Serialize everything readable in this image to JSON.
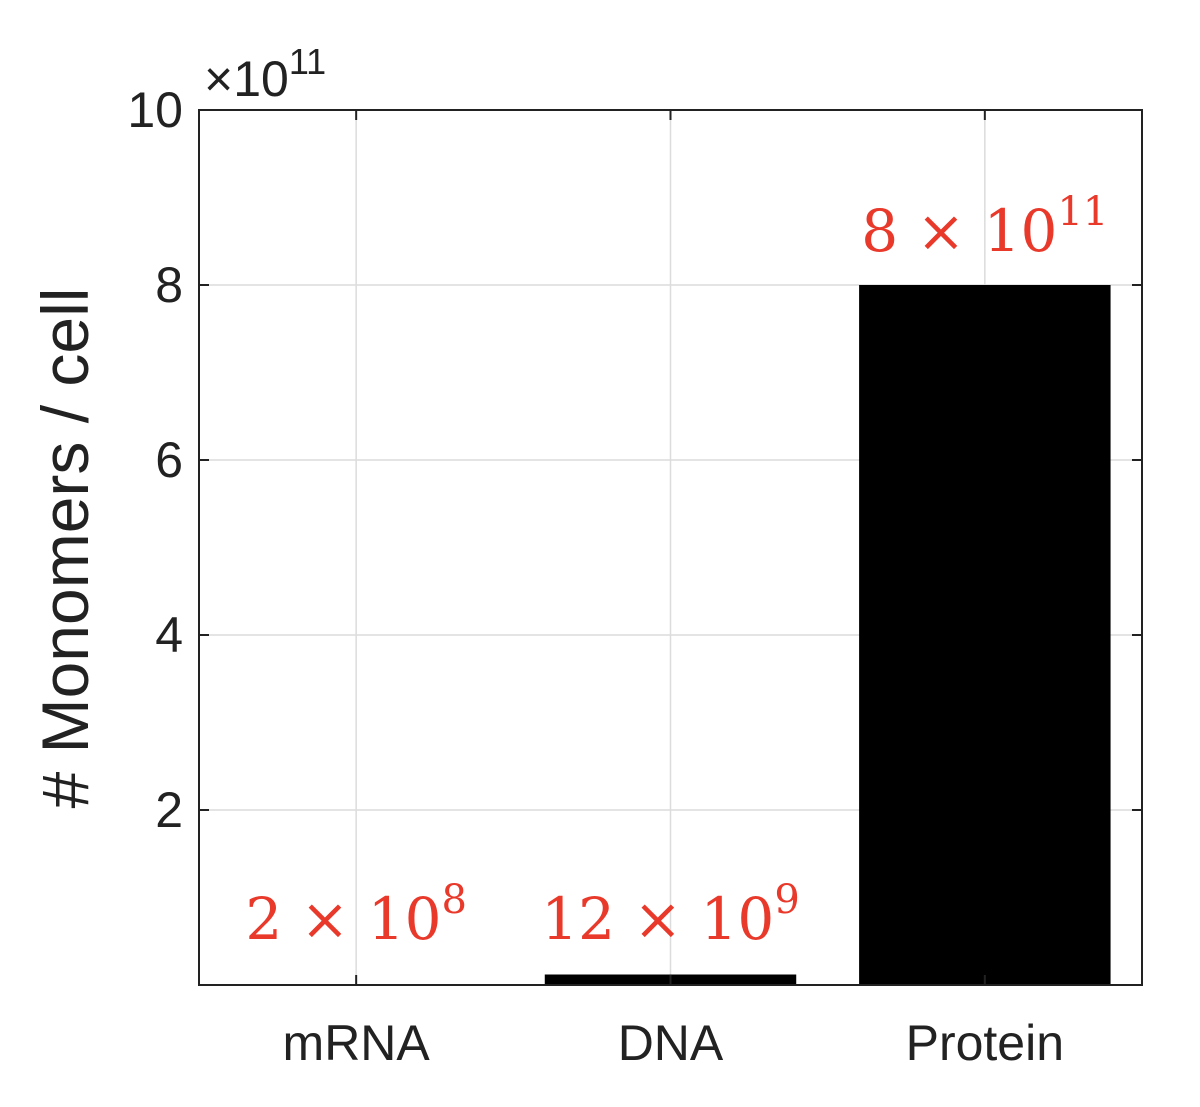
{
  "chart_data": {
    "type": "bar",
    "categories": [
      "mRNA",
      "DNA",
      "Protein"
    ],
    "values": [
      200000000,
      12000000000,
      800000000000
    ],
    "ylabel": "# Monomers / cell",
    "xlabel": "",
    "ylim": [
      0,
      1000000000000
    ],
    "yticks": [
      2,
      4,
      6,
      8,
      10
    ],
    "y_exponent_label": {
      "mult": "×",
      "base": "10",
      "exp": "11"
    },
    "data_labels": [
      {
        "coef": "2",
        "mult": "×",
        "base": "10",
        "exp": "8"
      },
      {
        "coef": "12",
        "mult": "×",
        "base": "10",
        "exp": "9"
      },
      {
        "coef": "8",
        "mult": "×",
        "base": "10",
        "exp": "11"
      }
    ],
    "grid": true,
    "colors": {
      "bar": "#000000",
      "label": "#e8392b",
      "grid": "#dcdcdc",
      "axis": "#222222"
    }
  }
}
